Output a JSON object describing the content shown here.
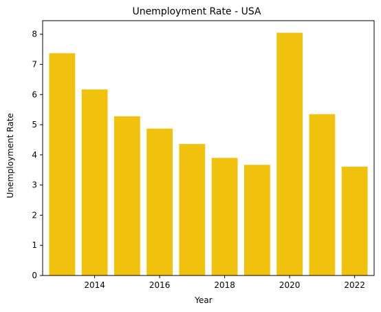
{
  "chart_data": {
    "type": "bar",
    "title": "Unemployment Rate - USA",
    "xlabel": "Year",
    "ylabel": "Unemployment Rate",
    "x": [
      2013,
      2014,
      2015,
      2016,
      2017,
      2018,
      2019,
      2020,
      2021,
      2022
    ],
    "values": [
      7.37,
      6.17,
      5.28,
      4.87,
      4.36,
      3.9,
      3.67,
      8.05,
      5.35,
      3.61
    ],
    "xticks": [
      2014,
      2016,
      2018,
      2020,
      2022
    ],
    "xtick_labels": [
      "2014",
      "2016",
      "2018",
      "2020",
      "2022"
    ],
    "yticks": [
      0,
      1,
      2,
      3,
      4,
      5,
      6,
      7,
      8
    ],
    "ytick_labels": [
      "0",
      "1",
      "2",
      "3",
      "4",
      "5",
      "6",
      "7",
      "8"
    ],
    "xlim": [
      2012.4,
      2022.6
    ],
    "ylim": [
      0,
      8.45
    ],
    "bar_width": 0.8,
    "grid": false,
    "bar_color": "#f0c20e"
  }
}
